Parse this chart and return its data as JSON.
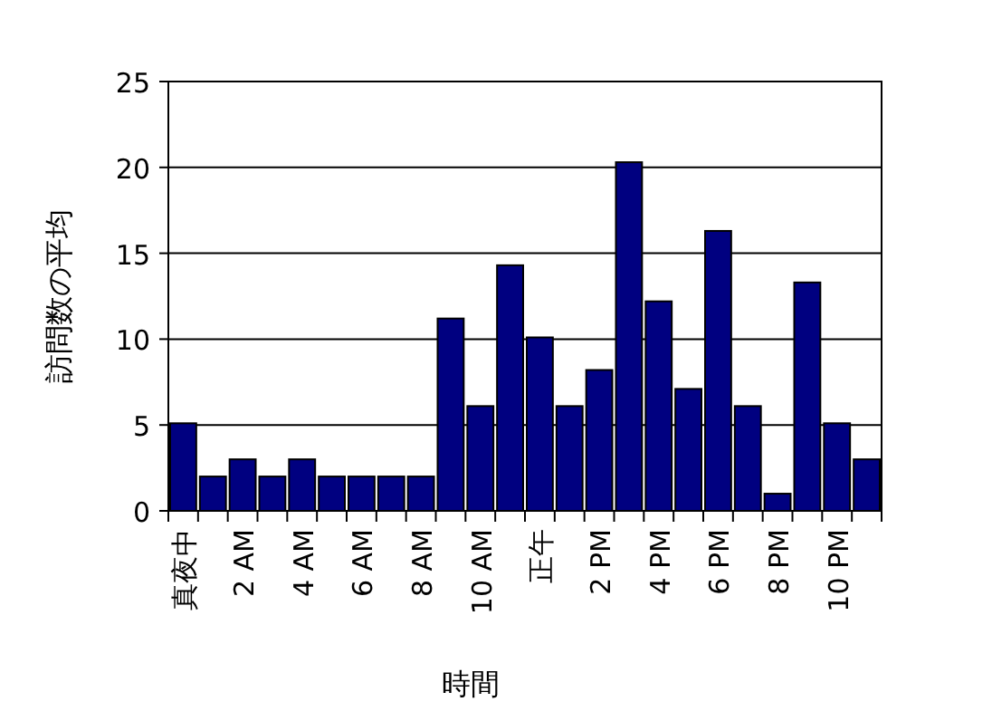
{
  "chart_data": {
    "type": "bar",
    "xlabel": "時間",
    "ylabel": "訪問数の平均",
    "categories": [
      "真夜中",
      null,
      "2 AM",
      null,
      "4 AM",
      null,
      "6 AM",
      null,
      "8 AM",
      null,
      "10 AM",
      null,
      "正午",
      null,
      "2 PM",
      null,
      "4 PM",
      null,
      "6 PM",
      null,
      "8 PM",
      null,
      "10 PM",
      null
    ],
    "values": [
      5.1,
      2,
      3,
      2,
      3,
      2,
      2,
      2,
      2,
      11.2,
      6.1,
      14.3,
      10.1,
      6.1,
      8.2,
      20.3,
      12.2,
      7.1,
      16.3,
      6.1,
      1,
      13.3,
      5.1,
      3
    ],
    "color": "#000080",
    "ylim": [
      0,
      25
    ],
    "yticks": [
      0,
      5,
      10,
      15,
      20,
      25
    ],
    "grid": "y"
  }
}
